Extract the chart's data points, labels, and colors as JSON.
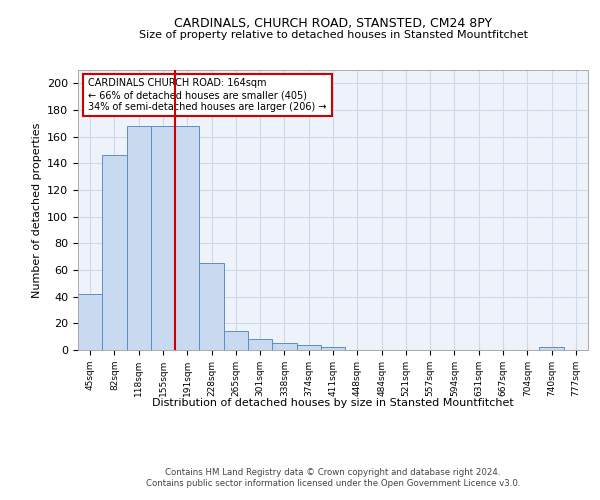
{
  "title": "CARDINALS, CHURCH ROAD, STANSTED, CM24 8PY",
  "subtitle": "Size of property relative to detached houses in Stansted Mountfitchet",
  "xlabel": "Distribution of detached houses by size in Stansted Mountfitchet",
  "ylabel": "Number of detached properties",
  "categories": [
    "45sqm",
    "82sqm",
    "118sqm",
    "155sqm",
    "191sqm",
    "228sqm",
    "265sqm",
    "301sqm",
    "338sqm",
    "374sqm",
    "411sqm",
    "448sqm",
    "484sqm",
    "521sqm",
    "557sqm",
    "594sqm",
    "631sqm",
    "667sqm",
    "704sqm",
    "740sqm",
    "777sqm"
  ],
  "values": [
    42,
    146,
    168,
    168,
    168,
    65,
    14,
    8,
    5,
    4,
    2,
    0,
    0,
    0,
    0,
    0,
    0,
    0,
    0,
    2,
    0
  ],
  "bar_color": "#c9d9f0",
  "bar_edge_color": "#5b8ec4",
  "property_line_x": 3.5,
  "annotation_text": "CARDINALS CHURCH ROAD: 164sqm\n← 66% of detached houses are smaller (405)\n34% of semi-detached houses are larger (206) →",
  "annotation_box_color": "#ffffff",
  "annotation_box_edge": "#cc0000",
  "red_line_color": "#cc0000",
  "grid_color": "#d0d8e8",
  "background_color": "#eef2fa",
  "footer1": "Contains HM Land Registry data © Crown copyright and database right 2024.",
  "footer2": "Contains public sector information licensed under the Open Government Licence v3.0.",
  "ylim": [
    0,
    210
  ],
  "yticks": [
    0,
    20,
    40,
    60,
    80,
    100,
    120,
    140,
    160,
    180,
    200
  ]
}
